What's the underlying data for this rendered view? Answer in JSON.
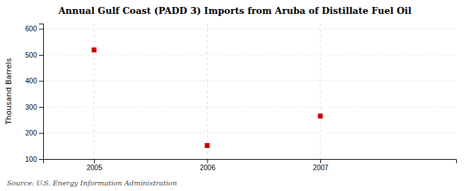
{
  "chart_data": {
    "type": "scatter",
    "title": "Annual Gulf Coast (PADD 3) Imports from Aruba of Distillate Fuel Oil",
    "ylabel": "Thousand Barrels",
    "source": "Source: U.S. Energy Information Administration",
    "x": [
      2005,
      2006,
      2007
    ],
    "values": [
      519,
      152,
      265
    ],
    "color": "#cc0000",
    "marker": "square",
    "xlim": [
      2004.55,
      2008.2
    ],
    "xticks": [
      2005,
      2006,
      2007
    ],
    "ylim": [
      100,
      620
    ],
    "yticks": [
      100,
      200,
      300,
      400,
      500,
      600
    ],
    "grid": true
  }
}
